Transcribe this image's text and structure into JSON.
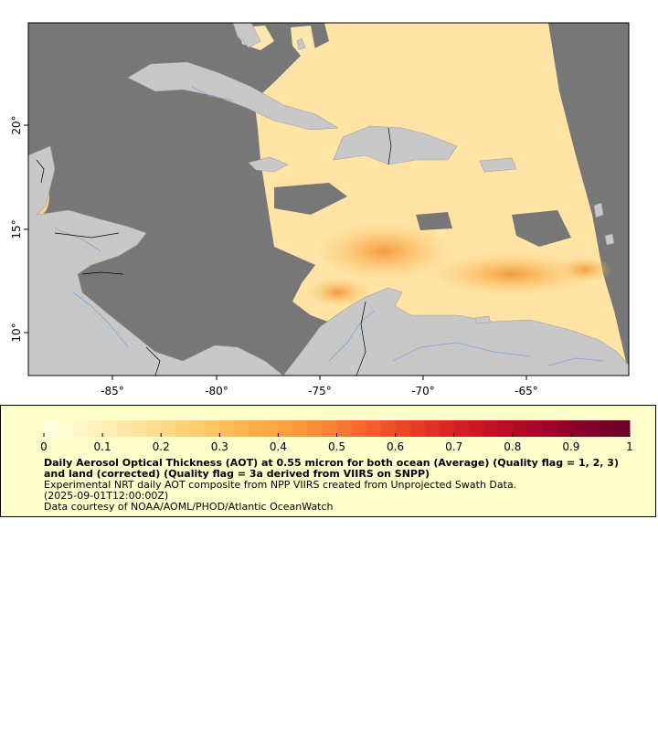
{
  "map": {
    "lat_ticks": [
      "10°",
      "15°",
      "20°"
    ],
    "lon_ticks": [
      "-85°",
      "-80°",
      "-75°",
      "-70°",
      "-65°"
    ],
    "lon_range": [
      -89.5,
      -60.2
    ],
    "lat_range": [
      8.0,
      24.8
    ],
    "colors": {
      "nodata": "#777777",
      "land": "#c8c8c8",
      "aot_low": "#ffebb0",
      "aot_mid": "#fcc060",
      "aot_high": "#f5903a",
      "rivers": "#7aa6d8",
      "borders": "#000000"
    }
  },
  "colorbar": {
    "min": 0,
    "max": 1,
    "labels": [
      "0",
      "0.1",
      "0.2",
      "0.3",
      "0.4",
      "0.5",
      "0.6",
      "0.7",
      "0.8",
      "0.9",
      "1"
    ],
    "colors": [
      "#ffffe0",
      "#fff3c0",
      "#ffe5a0",
      "#fed680",
      "#fec560",
      "#fdaf4a",
      "#fc9a3d",
      "#fa7b34",
      "#f45a2b",
      "#e63a24",
      "#d41e24",
      "#bd0f28",
      "#a3052b",
      "#860029",
      "#6e0026"
    ]
  },
  "legend": {
    "title": "Daily Aerosol Optical Thickness (AOT) at 0.55 micron for both ocean (Average) (Quality flag = 1, 2, 3) and land (corrected) (Quality flag = 3a derived from VIIRS on SNPP)",
    "line1": "Experimental NRT daily AOT composite from NPP VIIRS created from Unprojected Swath Data.",
    "line2": "(2025-09-01T12:00:00Z)",
    "line3": "Data courtesy of NOAA/AOML/PHOD/Atlantic OceanWatch"
  }
}
